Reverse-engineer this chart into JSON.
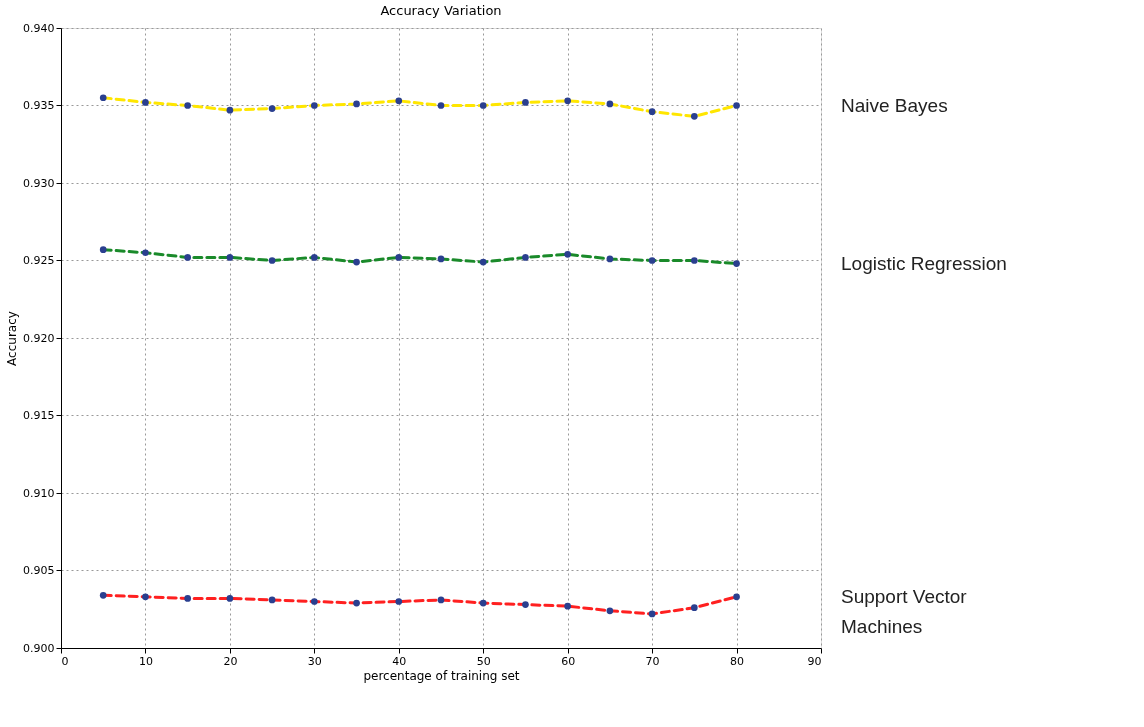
{
  "chart_data": {
    "type": "line",
    "title": "Accuracy Variation",
    "xlabel": "percentage of training set",
    "ylabel": "Accuracy",
    "x": [
      5,
      10,
      15,
      20,
      25,
      30,
      35,
      40,
      45,
      50,
      55,
      60,
      65,
      70,
      75,
      80
    ],
    "series": [
      {
        "name": "Naive Bayes",
        "color": "#ffe600",
        "values": [
          0.9355,
          0.9352,
          0.935,
          0.9347,
          0.9348,
          0.935,
          0.9351,
          0.9353,
          0.935,
          0.935,
          0.9352,
          0.9353,
          0.9351,
          0.9346,
          0.9343,
          0.935
        ]
      },
      {
        "name": "Logistic Regression",
        "color": "#1a8a2a",
        "values": [
          0.9257,
          0.9255,
          0.9252,
          0.9252,
          0.925,
          0.9252,
          0.9249,
          0.9252,
          0.9251,
          0.9249,
          0.9252,
          0.9254,
          0.9251,
          0.925,
          0.925,
          0.9248
        ]
      },
      {
        "name": "Support Vector Machines",
        "color": "#ff2020",
        "values": [
          0.9034,
          0.9033,
          0.9032,
          0.9032,
          0.9031,
          0.903,
          0.9029,
          0.903,
          0.9031,
          0.9029,
          0.9028,
          0.9027,
          0.9024,
          0.9022,
          0.9026,
          0.9033
        ]
      }
    ],
    "xlim": [
      0,
      90
    ],
    "xticks": [
      0,
      10,
      20,
      30,
      40,
      50,
      60,
      70,
      80,
      90
    ],
    "ylim": [
      0.9,
      0.94
    ],
    "yticks": [
      {
        "value": 0.9,
        "label": "0.900"
      },
      {
        "value": 0.905,
        "label": "0.905"
      },
      {
        "value": 0.91,
        "label": "0.910"
      },
      {
        "value": 0.915,
        "label": "0.915"
      },
      {
        "value": 0.92,
        "label": "0.920"
      },
      {
        "value": 0.925,
        "label": "0.925"
      },
      {
        "value": 0.93,
        "label": "0.930"
      },
      {
        "value": 0.935,
        "label": "0.935"
      },
      {
        "value": 0.94,
        "label": "0.940"
      }
    ],
    "grid": true,
    "marker": "circle",
    "line_style": "dashed"
  }
}
